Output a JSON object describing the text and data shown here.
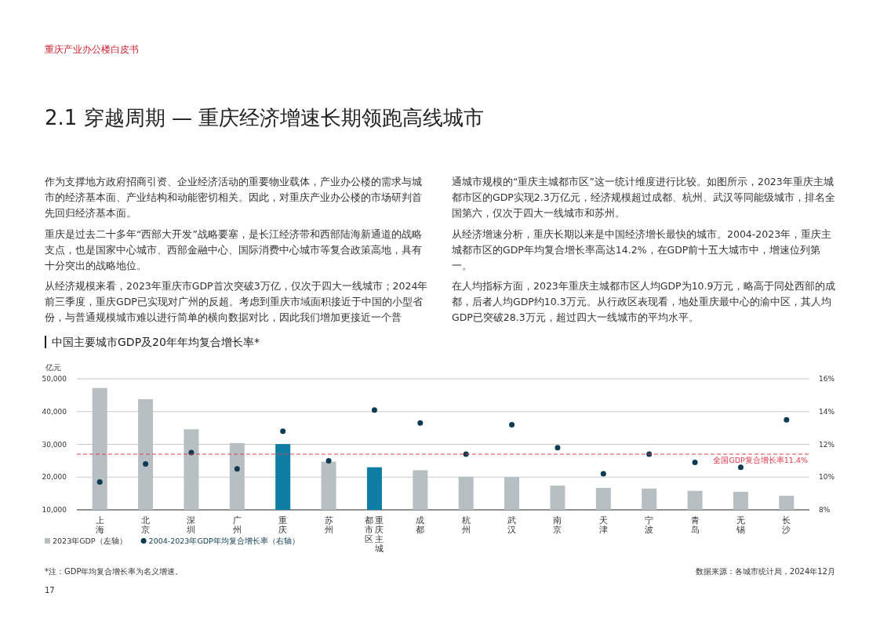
{
  "chart_data": {
    "type": "bar",
    "title": "中国主要城市GDP及20年年均复合增长率*",
    "ylabel": "亿元",
    "categories": [
      "上海",
      "北京",
      "深圳",
      "广州",
      "重庆",
      "苏州",
      "重庆主城都市区",
      "成都",
      "杭州",
      "武汉",
      "南京",
      "天津",
      "宁波",
      "青岛",
      "无锡",
      "长沙"
    ],
    "series": [
      {
        "name": "2023年GDP（左轴）",
        "color": "#b7bfc2",
        "colors": [
          "#b7bfc2",
          "#b7bfc2",
          "#b7bfc2",
          "#b7bfc2",
          "#0e7ea4",
          "#b7bfc2",
          "#0e7ea4",
          "#b7bfc2",
          "#b7bfc2",
          "#b7bfc2",
          "#b7bfc2",
          "#b7bfc2",
          "#b7bfc2",
          "#b7bfc2",
          "#b7bfc2",
          "#b7bfc2"
        ],
        "values": [
          47200,
          43800,
          34600,
          30400,
          30100,
          24700,
          23000,
          22100,
          20100,
          20000,
          17400,
          16700,
          16500,
          15800,
          15500,
          14300
        ]
      },
      {
        "name": "2004-2023年GDP年均复合增长率（右轴）",
        "type": "scatter",
        "axis": "y2",
        "color": "#0d3b52",
        "marker": "circle",
        "values": [
          9.7,
          10.8,
          11.5,
          10.5,
          12.8,
          11.0,
          14.1,
          13.3,
          11.4,
          13.2,
          11.8,
          10.2,
          11.4,
          10.9,
          10.6,
          13.5
        ]
      }
    ],
    "ylim": [
      10000,
      50000
    ],
    "yticks": [
      {
        "value": 10000,
        "label": "10,000"
      },
      {
        "value": 20000,
        "label": "20,000"
      },
      {
        "value": 30000,
        "label": "30,000"
      },
      {
        "value": 40000,
        "label": "40,000"
      },
      {
        "value": 50000,
        "label": "50,000"
      }
    ],
    "y2lim": [
      8,
      16
    ],
    "y2ticks": [
      {
        "value": 8,
        "label": "8%"
      },
      {
        "value": 10,
        "label": "10%"
      },
      {
        "value": 12,
        "label": "12%"
      },
      {
        "value": 14,
        "label": "14%"
      },
      {
        "value": 16,
        "label": "16%"
      }
    ],
    "ref_lines": [
      {
        "axis": "y2",
        "value": 11.4,
        "label": "全国GDP复合增长率11.4%",
        "color": "#e03a48",
        "line_style": "dashed"
      }
    ],
    "grid": "y",
    "legend": "bottom left",
    "annotations": [
      "重庆产业办公楼白皮书",
      "2.1 穿越周期 — 重庆经济增速长期领跑高线城市",
      "作为支撑地方政府招商引资、企业经济活动的重要物业载体，产业办公楼的需求与城市的经济基本面、产业结构和动能密切相关。因此，对重庆产业办公楼的市场研判首先回归经济基本面。",
      "重庆是过去二十多年“西部大开发”战略要塞，是长江经济带和西部陆海新通道的战略支点，也是国家中心城市、西部金融中心、国际消费中心城市等复合政策高地，具有十分突出的战略地位。",
      "从经济规模来看，2023年重庆市GDP首次突破3万亿，仅次于四大一线城市；2024年前三季度，重庆GDP已实现对广州的反超。考虑到重庆市域面积接近于中国的小型省份，与普通规模城市难以进行简单的横向数据对比，因此我们增加更接近一个普",
      "通城市规模的“重庆主城都市区”这一统计维度进行比较。如图所示，2023年重庆主城都市区的GDP实现2.3万亿元，经济规模超过成都、杭州、武汉等同能级城市，排名全国第六，仅次于四大一线城市和苏州。",
      "从经济增速分析，重庆长期以来是中国经济增长最快的城市。2004-2023年，重庆主城都市区的GDP年均复合增长率高达14.2%，在GDP前十五大城市中，增速位列第一。",
      "在人均指标方面，2023年重庆主城都市区人均GDP为10.9万元，略高于同处西部的成都，后者人均GDP约10.3万元。从行政区表现看，地处重庆最中心的渝中区，其人均GDP已突破28.3万元，超过四大一线城市的平均水平。",
      "*注：GDP年均复合增长率为名义增速。",
      "数据来源：各城市统计局，2024年12月",
      "17"
    ]
  }
}
